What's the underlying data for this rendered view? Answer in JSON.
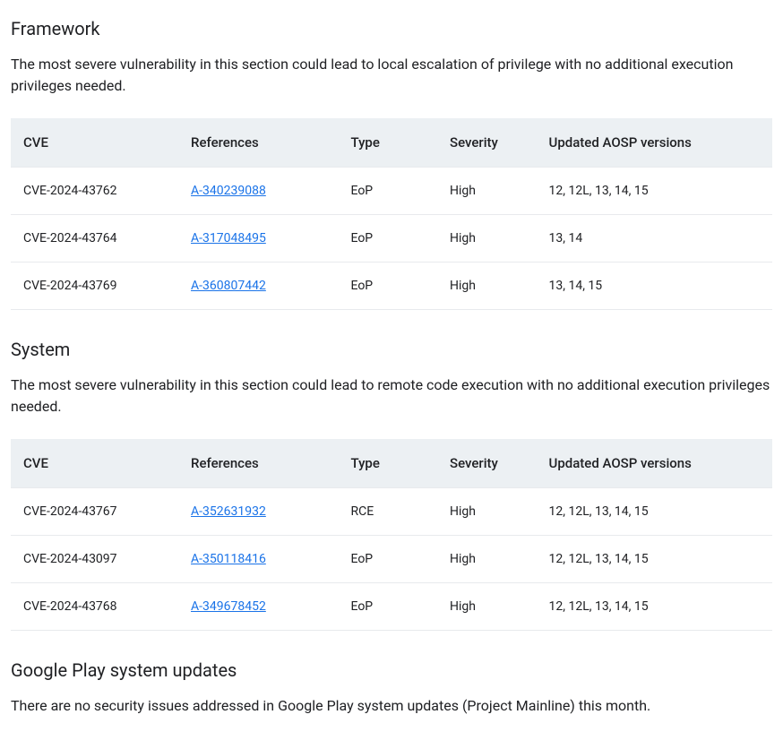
{
  "sections": [
    {
      "heading": "Framework",
      "description": "The most severe vulnerability in this section could lead to local escalation of privilege with no additional execution privileges needed.",
      "table": {
        "columns": [
          "CVE",
          "References",
          "Type",
          "Severity",
          "Updated AOSP versions"
        ],
        "rows": [
          {
            "cve": "CVE-2024-43762",
            "ref": "A-340239088",
            "type": "EoP",
            "severity": "High",
            "aosp": "12, 12L, 13, 14, 15"
          },
          {
            "cve": "CVE-2024-43764",
            "ref": "A-317048495",
            "type": "EoP",
            "severity": "High",
            "aosp": "13, 14"
          },
          {
            "cve": "CVE-2024-43769",
            "ref": "A-360807442",
            "type": "EoP",
            "severity": "High",
            "aosp": "13, 14, 15"
          }
        ]
      }
    },
    {
      "heading": "System",
      "description": "The most severe vulnerability in this section could lead to remote code execution with no additional execution privileges needed.",
      "table": {
        "columns": [
          "CVE",
          "References",
          "Type",
          "Severity",
          "Updated AOSP versions"
        ],
        "rows": [
          {
            "cve": "CVE-2024-43767",
            "ref": "A-352631932",
            "type": "RCE",
            "severity": "High",
            "aosp": "12, 12L, 13, 14, 15"
          },
          {
            "cve": "CVE-2024-43097",
            "ref": "A-350118416",
            "type": "EoP",
            "severity": "High",
            "aosp": "12, 12L, 13, 14, 15"
          },
          {
            "cve": "CVE-2024-43768",
            "ref": "A-349678452",
            "type": "EoP",
            "severity": "High",
            "aosp": "12, 12L, 13, 14, 15"
          }
        ]
      }
    },
    {
      "heading": "Google Play system updates",
      "description": "There are no security issues addressed in Google Play system updates (Project Mainline) this month.",
      "table": null
    }
  ],
  "styling": {
    "link_color": "#1a73e8",
    "header_bg": "#ecf0f3",
    "border_color": "#e8eaed",
    "text_color": "#202124",
    "background_color": "#ffffff",
    "heading_fontsize": 20,
    "body_fontsize": 16,
    "table_fontsize": 14,
    "column_widths_pct": [
      22,
      21,
      13,
      13,
      31
    ]
  }
}
